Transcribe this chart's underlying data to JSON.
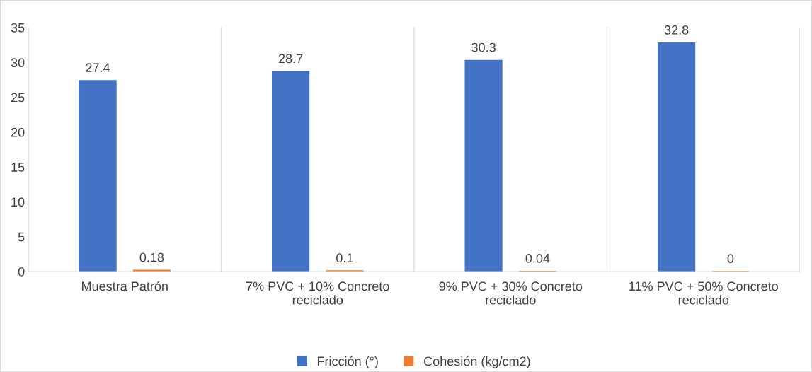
{
  "chart_data": {
    "type": "bar",
    "categories": [
      "Muestra Patrón",
      "7% PVC + 10% Concreto\nreciclado",
      "9% PVC + 30% Concreto\nreciclado",
      "11% PVC + 50% Concreto\nreciclado"
    ],
    "series": [
      {
        "name": "Fricción (°)",
        "color": "#4472c4",
        "values": [
          27.4,
          28.7,
          30.3,
          32.8
        ]
      },
      {
        "name": "Cohesión (kg/cm2)",
        "color": "#ed7d31",
        "values": [
          0.18,
          0.1,
          0.04,
          0
        ]
      }
    ],
    "ylim": [
      0,
      35
    ],
    "yticks": [
      0,
      5,
      10,
      15,
      20,
      25,
      30,
      35
    ],
    "grid": "x",
    "legend": "bottom",
    "data_labels": true
  }
}
